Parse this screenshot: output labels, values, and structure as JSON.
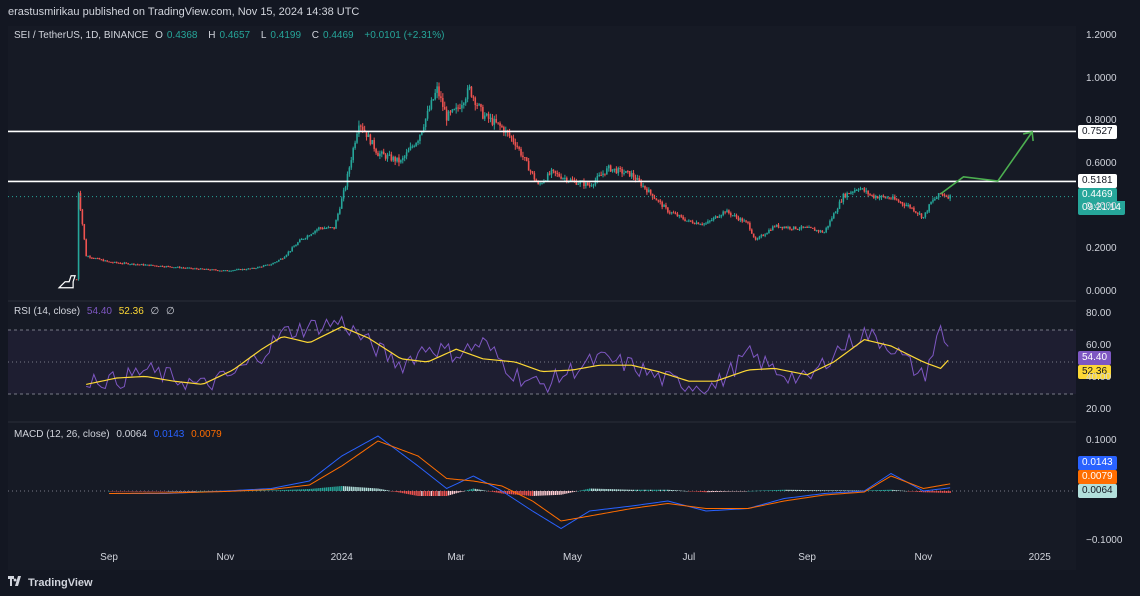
{
  "header": {
    "published": "erastusmirikau published on TradingView.com, Nov 15, 2024 14:38 UTC"
  },
  "symbol": {
    "name": "SEI / TetherUS, 1D, BINANCE",
    "o_label": "O",
    "o": "0.4368",
    "h_label": "H",
    "h": "0.4657",
    "l_label": "L",
    "l": "0.4199",
    "c_label": "C",
    "c": "0.4469",
    "change": "+0.0101 (+2.31%)"
  },
  "rsi_legend": {
    "label": "RSI (14, close)",
    "rsi": "54.40",
    "ma": "52.36",
    "x1": "∅",
    "x2": "∅"
  },
  "macd_legend": {
    "label": "MACD (12, 26, close)",
    "macd": "0.0064",
    "signal": "0.0143",
    "hist": "0.0079"
  },
  "price_tags": {
    "upper_line": "0.7527",
    "lower_line": "0.5181",
    "last": "0.4469",
    "countdown": "09:21:14"
  },
  "rsi_tags": {
    "rsi": "54.40",
    "ma": "52.36"
  },
  "macd_tags": {
    "signal": "0.0143",
    "hist": "0.0079",
    "macd": "0.0064"
  },
  "footer": {
    "brand": "TradingView"
  },
  "colors": {
    "bg": "#131722",
    "up": "#26a69a",
    "down": "#ef5350",
    "rsi": "#7e57c2",
    "rsi_ma": "#fdd835",
    "macd_line": "#2962ff",
    "signal_line": "#ff6d00",
    "arrow": "#4caf50",
    "level": "#ffffff"
  },
  "chart_data": [
    {
      "type": "line",
      "title": "SEI / TetherUS, 1D, BINANCE",
      "series": [
        {
          "x": [
            "2023-08-15",
            "2023-08-16",
            "2023-08-20",
            "2023-09-01",
            "2023-09-15",
            "2023-10-01",
            "2023-10-15",
            "2023-11-01",
            "2023-11-15",
            "2023-11-25",
            "2023-12-01",
            "2023-12-10",
            "2023-12-20",
            "2023-12-28",
            "2024-01-03",
            "2024-01-10",
            "2024-01-20",
            "2024-02-01",
            "2024-02-10",
            "2024-02-20",
            "2024-02-25",
            "2024-03-01",
            "2024-03-08",
            "2024-03-15",
            "2024-03-25",
            "2024-04-01",
            "2024-04-10",
            "2024-04-13",
            "2024-04-20",
            "2024-05-01",
            "2024-05-10",
            "2024-05-20",
            "2024-06-01",
            "2024-06-10",
            "2024-06-20",
            "2024-07-01",
            "2024-07-10",
            "2024-07-20",
            "2024-08-01",
            "2024-08-05",
            "2024-08-15",
            "2024-08-25",
            "2024-09-01",
            "2024-09-10",
            "2024-09-20",
            "2024-09-28",
            "2024-10-05",
            "2024-10-15",
            "2024-10-25",
            "2024-11-01",
            "2024-11-05",
            "2024-11-10",
            "2024-11-15"
          ],
          "values": [
            0.06,
            0.47,
            0.17,
            0.14,
            0.13,
            0.12,
            0.11,
            0.1,
            0.11,
            0.13,
            0.16,
            0.24,
            0.3,
            0.3,
            0.5,
            0.8,
            0.65,
            0.61,
            0.72,
            0.95,
            0.82,
            0.85,
            0.95,
            0.83,
            0.77,
            0.7,
            0.55,
            0.5,
            0.56,
            0.52,
            0.5,
            0.58,
            0.55,
            0.47,
            0.38,
            0.33,
            0.32,
            0.38,
            0.32,
            0.24,
            0.31,
            0.3,
            0.3,
            0.28,
            0.45,
            0.49,
            0.45,
            0.44,
            0.4,
            0.35,
            0.42,
            0.46,
            0.4469
          ]
        }
      ],
      "annotations": [
        "0.7527",
        "0.5181"
      ],
      "y_ticks": [
        "1.2000",
        "1.0000",
        "0.8000",
        "0.6000",
        "0.4000",
        "0.2000",
        "0.0000"
      ],
      "x_ticks": [
        "Sep",
        "Nov",
        "2024",
        "Mar",
        "May",
        "Jul",
        "Sep",
        "Nov",
        "2025"
      ],
      "ylim": [
        0,
        1.2
      ]
    },
    {
      "type": "line",
      "title": "RSI (14, close)",
      "series": [
        {
          "x": [
            "2023-08-20",
            "2023-09-05",
            "2023-09-20",
            "2023-10-05",
            "2023-10-20",
            "2023-11-05",
            "2023-11-20",
            "2023-12-01",
            "2023-12-15",
            "2024-01-01",
            "2024-01-15",
            "2024-02-01",
            "2024-02-15",
            "2024-03-01",
            "2024-03-15",
            "2024-04-01",
            "2024-04-15",
            "2024-05-01",
            "2024-05-15",
            "2024-06-01",
            "2024-06-15",
            "2024-07-01",
            "2024-07-15",
            "2024-08-01",
            "2024-08-15",
            "2024-09-01",
            "2024-09-15",
            "2024-10-01",
            "2024-10-15",
            "2024-11-01",
            "2024-11-10",
            "2024-11-15"
          ],
          "values": [
            40,
            38,
            45,
            40,
            35,
            42,
            55,
            68,
            72,
            75,
            62,
            48,
            60,
            55,
            62,
            42,
            35,
            45,
            52,
            48,
            40,
            36,
            35,
            55,
            45,
            38,
            56,
            68,
            60,
            40,
            70,
            54.4
          ]
        },
        {
          "x": [
            "2023-08-20",
            "2023-09-05",
            "2023-09-20",
            "2023-10-05",
            "2023-10-20",
            "2023-11-05",
            "2023-11-20",
            "2023-12-01",
            "2023-12-15",
            "2024-01-01",
            "2024-01-15",
            "2024-02-01",
            "2024-02-15",
            "2024-03-01",
            "2024-03-15",
            "2024-04-01",
            "2024-04-15",
            "2024-05-01",
            "2024-05-15",
            "2024-06-01",
            "2024-06-15",
            "2024-07-01",
            "2024-07-15",
            "2024-08-01",
            "2024-08-15",
            "2024-09-01",
            "2024-09-15",
            "2024-10-01",
            "2024-10-15",
            "2024-11-01",
            "2024-11-10",
            "2024-11-15"
          ],
          "values": [
            36,
            40,
            41,
            38,
            36,
            45,
            58,
            66,
            62,
            72,
            65,
            52,
            50,
            58,
            52,
            50,
            44,
            45,
            48,
            48,
            44,
            38,
            38,
            45,
            46,
            42,
            50,
            64,
            60,
            50,
            46,
            52.36
          ]
        }
      ],
      "y_ticks": [
        "80.00",
        "60.00",
        "40.00",
        "20.00"
      ],
      "ylim": [
        15,
        85
      ]
    },
    {
      "type": "line",
      "title": "MACD (12, 26, close)",
      "series": [
        {
          "x": [
            "2023-09-01",
            "2023-10-01",
            "2023-11-01",
            "2023-11-25",
            "2023-12-15",
            "2024-01-01",
            "2024-01-20",
            "2024-02-10",
            "2024-02-25",
            "2024-03-10",
            "2024-03-25",
            "2024-04-10",
            "2024-04-25",
            "2024-05-10",
            "2024-06-01",
            "2024-06-20",
            "2024-07-10",
            "2024-08-01",
            "2024-08-20",
            "2024-09-10",
            "2024-10-01",
            "2024-10-15",
            "2024-11-01",
            "2024-11-15"
          ],
          "values": [
            -0.005,
            -0.005,
            0.0,
            0.005,
            0.02,
            0.07,
            0.11,
            0.05,
            0.005,
            0.03,
            0.0,
            -0.04,
            -0.075,
            -0.04,
            -0.03,
            -0.02,
            -0.04,
            -0.035,
            -0.015,
            -0.005,
            0.0,
            0.035,
            0.0,
            0.0064
          ]
        },
        {
          "x": [
            "2023-09-01",
            "2023-10-01",
            "2023-11-01",
            "2023-11-25",
            "2023-12-15",
            "2024-01-01",
            "2024-01-20",
            "2024-02-10",
            "2024-02-25",
            "2024-03-10",
            "2024-03-25",
            "2024-04-10",
            "2024-04-25",
            "2024-05-10",
            "2024-06-01",
            "2024-06-20",
            "2024-07-10",
            "2024-08-01",
            "2024-08-20",
            "2024-09-10",
            "2024-10-01",
            "2024-10-15",
            "2024-11-01",
            "2024-11-15"
          ],
          "values": [
            -0.005,
            -0.004,
            -0.001,
            0.003,
            0.012,
            0.05,
            0.1,
            0.07,
            0.025,
            0.02,
            0.01,
            -0.02,
            -0.06,
            -0.05,
            -0.035,
            -0.025,
            -0.035,
            -0.035,
            -0.02,
            -0.008,
            -0.002,
            0.03,
            0.005,
            0.0143
          ]
        }
      ],
      "y_ticks": [
        "0.1000",
        "−0.1000"
      ],
      "ylim": [
        -0.11,
        0.13
      ]
    }
  ]
}
